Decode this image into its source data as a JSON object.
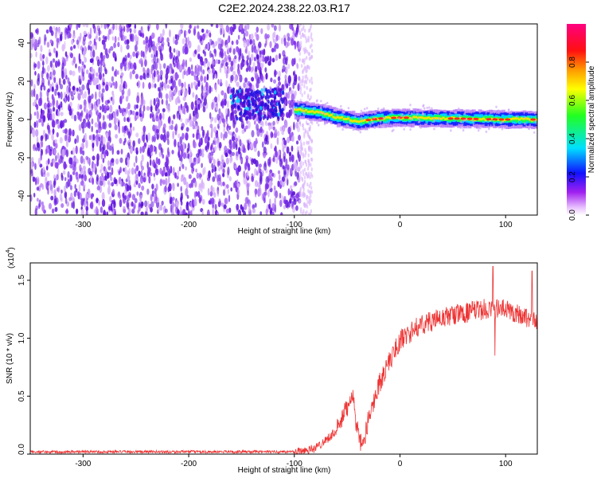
{
  "figure_title": "C2E2.2024.238.22.03.R17",
  "colors": {
    "snr_line": "#ee3333",
    "spectrum_speckle": "#6a1fe0",
    "spectrum_band_core": "#ff2020",
    "spectrum_band_mid": "#20ff40",
    "spectrum_band_edge": "#1020ff"
  },
  "chart_data": [
    {
      "type": "heatmap",
      "title": "",
      "xlabel": "Height of straight line (km)",
      "ylabel": "Frequency (Hz)",
      "xlim": [
        -350,
        130
      ],
      "ylim": [
        -50,
        50
      ],
      "x_ticks": [
        -300,
        -200,
        -100,
        0,
        100
      ],
      "y_ticks": [
        -40,
        -20,
        0,
        20,
        40
      ],
      "colorbar": {
        "label": "Normalized spectral amplitude",
        "range": [
          0,
          1
        ],
        "ticks": [
          "0.0",
          "0.2",
          "0.4",
          "0.6",
          "0.8"
        ],
        "colormap": "rainbow (white-magenta-purple-blue-cyan-green-yellow-orange-red-pink)"
      },
      "features": {
        "noise_region_km": [
          -350,
          -95
        ],
        "noise_amplitude": 0.15,
        "blob": {
          "x_range_km": [
            -160,
            -110
          ],
          "freq_hz": 8,
          "amplitude": 0.35
        },
        "band_start_km": -100,
        "band_centerline": [
          {
            "x": -100,
            "freq": 5
          },
          {
            "x": -80,
            "freq": 4
          },
          {
            "x": -60,
            "freq": 1
          },
          {
            "x": -40,
            "freq": -1
          },
          {
            "x": -20,
            "freq": 0.5
          },
          {
            "x": 0,
            "freq": 1
          },
          {
            "x": 50,
            "freq": 0.5
          },
          {
            "x": 100,
            "freq": 0
          },
          {
            "x": 130,
            "freq": 0
          }
        ]
      }
    },
    {
      "type": "line",
      "title": "",
      "xlabel": "Height of straight line (km)",
      "ylabel": "SNR (10 * v/v)",
      "y_multiplier": "(x10",
      "y_exponent": "4",
      "xlim": [
        -350,
        130
      ],
      "ylim": [
        0,
        1.65
      ],
      "x_ticks": [
        -300,
        -200,
        -100,
        0,
        100
      ],
      "y_ticks": [
        "0.0",
        "0.5",
        "1.0",
        "1.5"
      ],
      "series": [
        {
          "name": "",
          "color": "#ee3333",
          "trend": [
            {
              "x": -350,
              "y": 0.02
            },
            {
              "x": -100,
              "y": 0.02
            },
            {
              "x": -80,
              "y": 0.05
            },
            {
              "x": -60,
              "y": 0.2
            },
            {
              "x": -50,
              "y": 0.4
            },
            {
              "x": -45,
              "y": 0.55
            },
            {
              "x": -42,
              "y": 0.3
            },
            {
              "x": -38,
              "y": 0.08
            },
            {
              "x": -34,
              "y": 0.1
            },
            {
              "x": -30,
              "y": 0.3
            },
            {
              "x": -20,
              "y": 0.6
            },
            {
              "x": -10,
              "y": 0.8
            },
            {
              "x": 0,
              "y": 0.98
            },
            {
              "x": 20,
              "y": 1.12
            },
            {
              "x": 50,
              "y": 1.2
            },
            {
              "x": 80,
              "y": 1.25
            },
            {
              "x": 100,
              "y": 1.25
            },
            {
              "x": 130,
              "y": 1.15
            }
          ],
          "noise_amplitude": 0.09,
          "spikes": [
            {
              "x": 88,
              "y": 1.62
            },
            {
              "x": 125,
              "y": 1.58
            },
            {
              "x": 90,
              "y": 0.85
            }
          ]
        }
      ]
    }
  ]
}
